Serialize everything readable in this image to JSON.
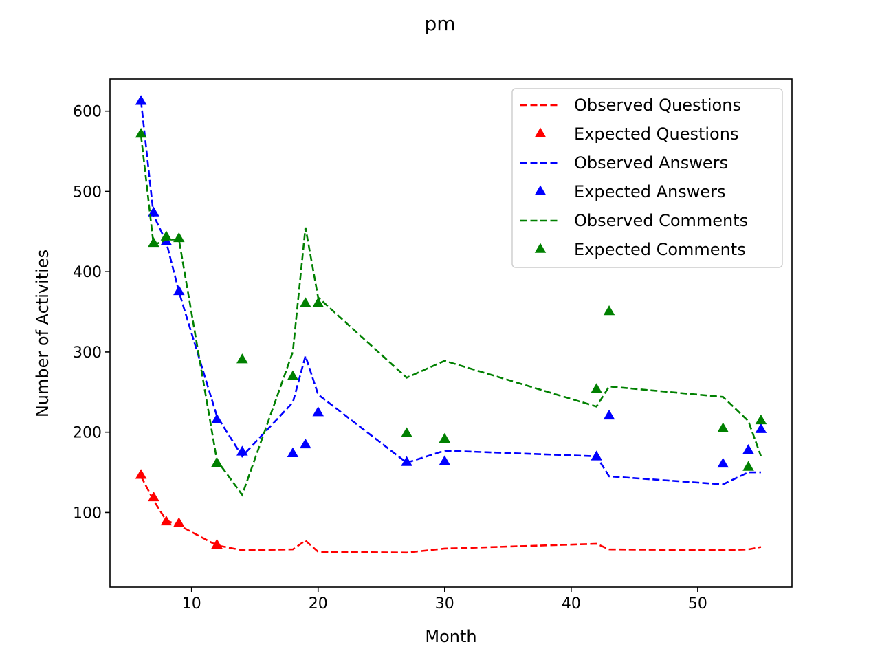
{
  "chart_data": {
    "type": "line",
    "title": "pm",
    "xlabel": "Month",
    "ylabel": "Number of Activities",
    "xlim": [
      3.55,
      57.45
    ],
    "ylim": [
      7,
      640
    ],
    "xticks": [
      10,
      20,
      30,
      40,
      50
    ],
    "yticks": [
      100,
      200,
      300,
      400,
      500,
      600
    ],
    "grid": false,
    "legend_position": "upper right",
    "x": [
      6,
      7,
      8,
      9,
      12,
      14,
      18,
      19,
      20,
      27,
      30,
      42,
      43,
      52,
      54,
      55
    ],
    "series": [
      {
        "name": "Observed Questions",
        "kind": "line",
        "style": "dashed",
        "color": "#ff0000",
        "values": [
          145,
          115,
          90,
          84,
          59,
          53,
          54,
          65,
          51,
          50,
          55,
          61,
          54,
          53,
          54,
          57
        ]
      },
      {
        "name": "Expected Questions",
        "kind": "marker",
        "marker": "triangle",
        "color": "#ff0000",
        "x": [
          6,
          7,
          8,
          9,
          12
        ],
        "values": [
          146,
          118,
          88,
          86,
          59
        ]
      },
      {
        "name": "Observed Answers",
        "kind": "line",
        "style": "dashed",
        "color": "#0000ff",
        "values": [
          613,
          470,
          437,
          375,
          220,
          170,
          237,
          295,
          247,
          162,
          177,
          170,
          145,
          135,
          150,
          150
        ]
      },
      {
        "name": "Expected Answers",
        "kind": "marker",
        "marker": "triangle",
        "color": "#0000ff",
        "values": [
          612,
          473,
          437,
          375,
          215,
          175,
          173,
          184,
          224,
          162,
          163,
          169,
          220,
          160,
          177,
          203
        ]
      },
      {
        "name": "Observed Comments",
        "kind": "line",
        "style": "dashed",
        "color": "#008000",
        "values": [
          570,
          433,
          440,
          440,
          165,
          122,
          300,
          455,
          368,
          268,
          289,
          232,
          257,
          244,
          214,
          170
        ]
      },
      {
        "name": "Expected Comments",
        "kind": "marker",
        "marker": "triangle",
        "color": "#008000",
        "values": [
          571,
          435,
          443,
          441,
          161,
          290,
          269,
          360,
          360,
          198,
          191,
          253,
          350,
          204,
          156,
          214
        ]
      }
    ]
  }
}
